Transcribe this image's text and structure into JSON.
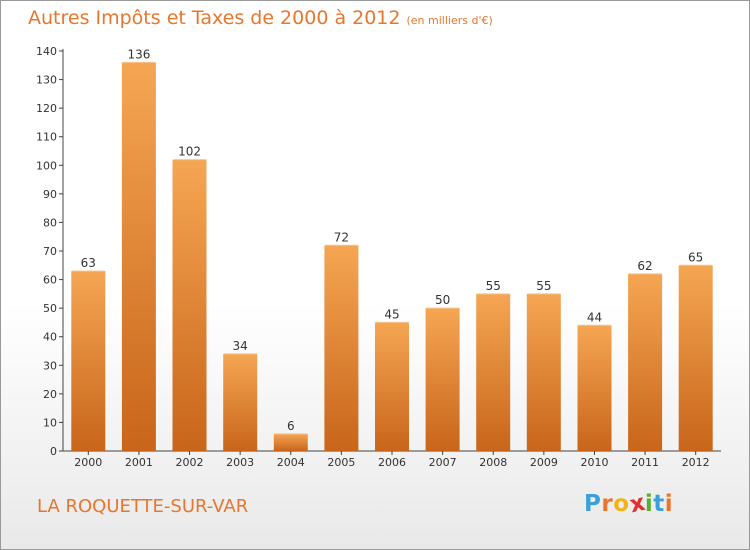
{
  "header": {
    "title": "Autres Impôts et Taxes de 2000 à 2012",
    "subtitle": "(en milliers d'€)"
  },
  "footer": {
    "city": "LA ROQUETTE-SUR-VAR",
    "logo": [
      "P",
      "r",
      "o",
      "x",
      "i",
      "t",
      "i"
    ]
  },
  "colors": {
    "bar_top": "#f5a653",
    "bar_bottom": "#c8651a",
    "accent": "#e8762c",
    "logo": [
      "#3aa0d8",
      "#e8762c",
      "#f0b418",
      "#e03030",
      "#58b032",
      "#3aa0d8",
      "#e8762c"
    ]
  },
  "chart_data": {
    "type": "bar",
    "title": "Autres Impôts et Taxes de 2000 à 2012",
    "subtitle": "(en milliers d'€)",
    "categories": [
      "2000",
      "2001",
      "2002",
      "2003",
      "2004",
      "2005",
      "2006",
      "2007",
      "2008",
      "2009",
      "2010",
      "2011",
      "2012"
    ],
    "values": [
      63,
      136,
      102,
      34,
      6,
      72,
      45,
      50,
      55,
      55,
      44,
      62,
      65
    ],
    "yticks": [
      0,
      10,
      20,
      30,
      40,
      50,
      60,
      70,
      80,
      90,
      100,
      110,
      120,
      130,
      140
    ],
    "ylim": [
      0,
      140
    ],
    "xlabel": "",
    "ylabel": "",
    "grid": false,
    "data_labels": true
  }
}
